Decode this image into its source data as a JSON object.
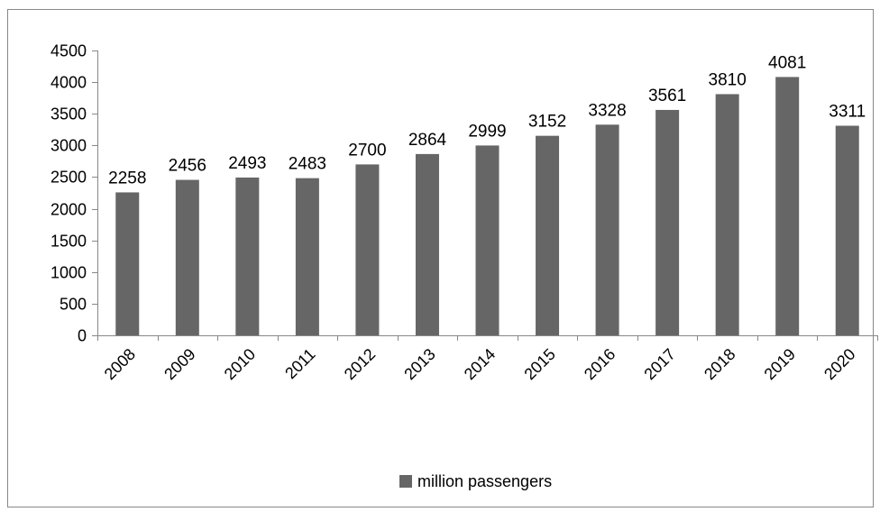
{
  "chart_data": {
    "type": "bar",
    "categories": [
      "2008",
      "2009",
      "2010",
      "2011",
      "2012",
      "2013",
      "2014",
      "2015",
      "2016",
      "2017",
      "2018",
      "2019",
      "2020"
    ],
    "series": [
      {
        "name": "million passengers",
        "values": [
          2258,
          2456,
          2493,
          2483,
          2700,
          2864,
          2999,
          3152,
          3328,
          3561,
          3810,
          4081,
          3311
        ],
        "color": "#666666"
      }
    ],
    "title": "",
    "xlabel": "",
    "ylabel": "",
    "ylim": [
      0,
      4500
    ],
    "yticks": [
      0,
      500,
      1000,
      1500,
      2000,
      2500,
      3000,
      3500,
      4000,
      4500
    ],
    "ytick_labels": [
      "0",
      "500",
      "1000",
      "1500",
      "2000",
      "2500",
      "3000",
      "3500",
      "4000",
      "4500"
    ],
    "data_labels": [
      "2258",
      "2456",
      "2493",
      "2483",
      "2700",
      "2864",
      "2999",
      "3152",
      "3328",
      "3561",
      "3810",
      "4081",
      "3311"
    ],
    "grid": false,
    "legend_position": "bottom"
  }
}
